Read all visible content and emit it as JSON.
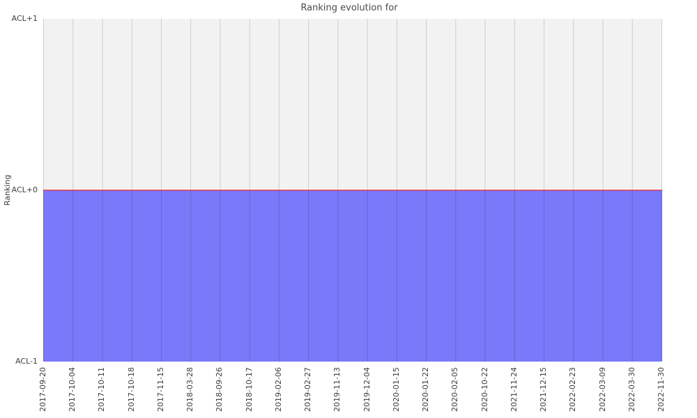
{
  "figure": {
    "background": "#ffffff"
  },
  "chart_data": {
    "type": "area",
    "title": "Ranking evolution for",
    "xlabel": "",
    "ylabel": "Ranking",
    "x_tick_labels": [
      "2017-09-20",
      "2017-10-04",
      "2017-10-11",
      "2017-10-18",
      "2017-11-15",
      "2018-03-28",
      "2018-09-26",
      "2018-10-17",
      "2019-02-06",
      "2019-02-27",
      "2019-11-13",
      "2019-12-04",
      "2020-01-15",
      "2020-01-22",
      "2020-02-05",
      "2020-10-22",
      "2021-11-24",
      "2021-12-15",
      "2022-02-23",
      "2022-03-09",
      "2022-03-30",
      "2022-11-30"
    ],
    "y_ticks": [
      {
        "label": "ACL-1",
        "value": -1
      },
      {
        "label": "ACL+0",
        "value": 0
      },
      {
        "label": "ACL+1",
        "value": 1
      }
    ],
    "ylim": [
      -1,
      1
    ],
    "series": [
      {
        "name": "ranking",
        "values": [
          0,
          0,
          0,
          0,
          0,
          0,
          0,
          0,
          0,
          0,
          0,
          0,
          0,
          0,
          0,
          0,
          0,
          0,
          0,
          0,
          0,
          0
        ],
        "line_color": "rgba(255,0,0,0.5)",
        "line_width": 2,
        "fill_to": -1,
        "fill_color": "rgba(0,0,255,0.5)"
      }
    ],
    "grid": {
      "axis": "x",
      "color": "rgba(0,0,0,0.15)"
    },
    "plot_bg": "#f2f2f2",
    "legend": "none"
  }
}
